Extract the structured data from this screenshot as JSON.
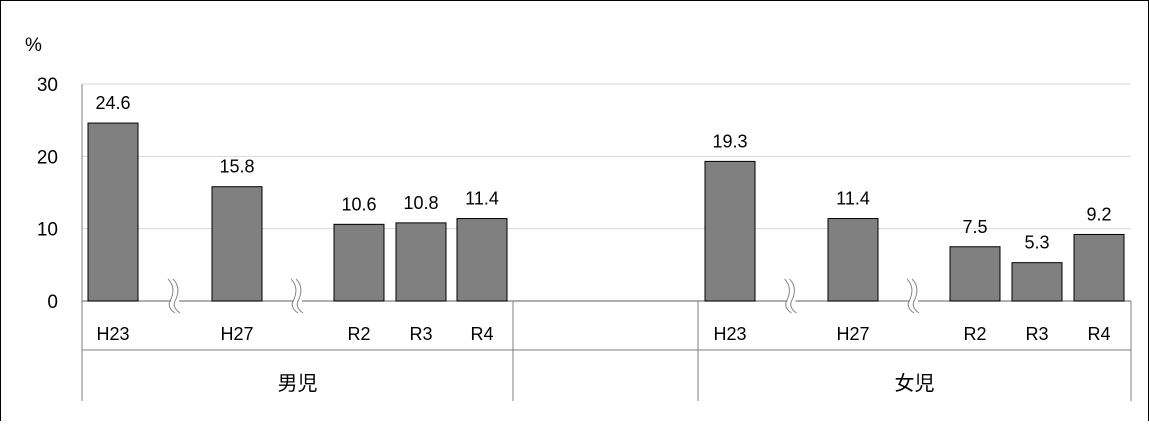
{
  "chart_data": {
    "type": "bar",
    "title": "",
    "xlabel": "",
    "ylabel": "%",
    "ylim": [
      0,
      30
    ],
    "yticks": [
      0,
      10,
      20,
      30
    ],
    "grid": true,
    "colors": {
      "bar": "#808080",
      "bar_edge": "#000000",
      "grid": "#d9d9d9",
      "axis": "#7f7f7f"
    },
    "groups": [
      {
        "name": "男児",
        "categories": [
          "H23",
          "H27",
          "R2",
          "R3",
          "R4"
        ],
        "values": [
          24.6,
          15.8,
          10.6,
          10.8,
          11.4
        ],
        "value_labels": [
          "24.6",
          "15.8",
          "10.6",
          "10.8",
          "11.4"
        ],
        "axis_breaks_after": [
          "H23",
          "H27"
        ]
      },
      {
        "name": "女児",
        "categories": [
          "H23",
          "H27",
          "R2",
          "R3",
          "R4"
        ],
        "values": [
          19.3,
          11.4,
          7.5,
          5.3,
          9.2
        ],
        "value_labels": [
          "19.3",
          "11.4",
          "7.5",
          "5.3",
          "9.2"
        ],
        "axis_breaks_after": [
          "H23",
          "H27"
        ]
      }
    ]
  }
}
